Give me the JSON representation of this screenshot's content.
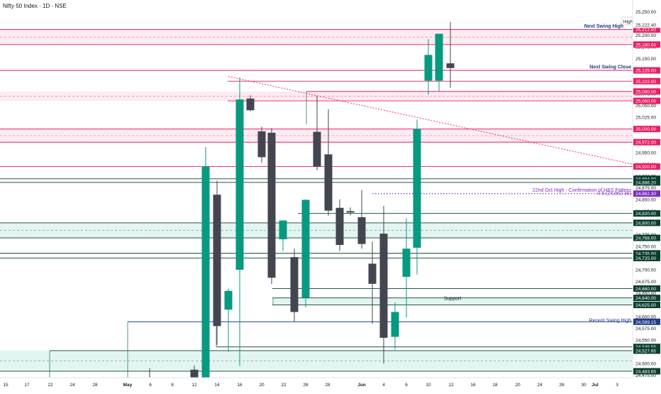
{
  "header": {
    "title": "Nifty 50 Index · 1D · NSE"
  },
  "chart_data": {
    "type": "candlestick",
    "ylim": [
      24470,
      25275
    ],
    "y_ticks": [
      "25,250.00",
      "25,225.00",
      "25,200.00",
      "25,175.00",
      "25,150.00",
      "25,125.00",
      "25,100.00",
      "25,075.00",
      "25,050.00",
      "25,025.00",
      "25,000.00",
      "24,975.00",
      "24,950.00",
      "24,925.00",
      "24,900.00",
      "24,875.00",
      "24,850.00",
      "24,825.00",
      "24,800.00",
      "24,775.00",
      "24,750.00",
      "24,725.00",
      "24,700.00",
      "24,675.00",
      "24,650.00",
      "24,625.00",
      "24,600.00",
      "24,575.00",
      "24,550.00",
      "24,525.00",
      "24,500.00",
      "24,475.00"
    ],
    "x_ticks": [
      "15",
      "17",
      "22",
      "24",
      "28",
      "May",
      "6",
      "8",
      "12",
      "14",
      "16",
      "20",
      "22",
      "26",
      "28",
      "Jun",
      "4",
      "6",
      "10",
      "12",
      "16",
      "18",
      "20",
      "24",
      "26",
      "30",
      "Jul",
      "3"
    ],
    "colors": {
      "up": "#089981",
      "down": "#434651",
      "resistance": "#e91e63",
      "support": "#0b3d2e",
      "zone_red": "#fce4ec",
      "zone_green": "#d9f2ec",
      "recent_high": "#1e3a8a",
      "annotation": "#7b2cbf"
    },
    "candles": [
      {
        "x": 0,
        "o": 24470,
        "h": 24490,
        "l": 24420,
        "c": 24460
      },
      {
        "x": 1,
        "o": 24487,
        "h": 24496,
        "l": 24430,
        "c": 24450
      },
      {
        "x": 2,
        "o": 24460,
        "h": 24962,
        "l": 24440,
        "c": 24920
      },
      {
        "x": 3,
        "o": 24860,
        "h": 24890,
        "l": 24540,
        "c": 24580
      },
      {
        "x": 4,
        "o": 24615,
        "h": 24660,
        "l": 24525,
        "c": 24655
      },
      {
        "x": 5,
        "o": 24700,
        "h": 25110,
        "l": 24495,
        "c": 25063
      },
      {
        "x": 6,
        "o": 25065,
        "h": 25072,
        "l": 25038,
        "c": 25040
      },
      {
        "x": 7,
        "o": 24995,
        "h": 25005,
        "l": 24928,
        "c": 24940
      },
      {
        "x": 8,
        "o": 24992,
        "h": 25002,
        "l": 24670,
        "c": 24683
      },
      {
        "x": 9,
        "o": 24765,
        "h": 24805,
        "l": 24740,
        "c": 24805
      },
      {
        "x": 10,
        "o": 24727,
        "h": 24745,
        "l": 24590,
        "c": 24610
      },
      {
        "x": 11,
        "o": 24640,
        "h": 24850,
        "l": 24620,
        "c": 24849
      },
      {
        "x": 12,
        "o": 24994,
        "h": 25070,
        "l": 24912,
        "c": 24920
      },
      {
        "x": 13,
        "o": 24946,
        "h": 25042,
        "l": 24815,
        "c": 24826
      },
      {
        "x": 14,
        "o": 24832,
        "h": 24850,
        "l": 24740,
        "c": 24753
      },
      {
        "x": 15,
        "o": 24825,
        "h": 24833,
        "l": 24816,
        "c": 24823
      },
      {
        "x": 16,
        "o": 24812,
        "h": 24870,
        "l": 24745,
        "c": 24755
      },
      {
        "x": 17,
        "o": 24713,
        "h": 24760,
        "l": 24585,
        "c": 24670
      },
      {
        "x": 18,
        "o": 24777,
        "h": 24836,
        "l": 24500,
        "c": 24555
      },
      {
        "x": 19,
        "o": 24557,
        "h": 24630,
        "l": 24530,
        "c": 24610
      },
      {
        "x": 20,
        "o": 24685,
        "h": 24810,
        "l": 24598,
        "c": 24745
      },
      {
        "x": 21,
        "o": 24747,
        "h": 25020,
        "l": 24690,
        "c": 25000
      },
      {
        "x": 22,
        "o": 25103,
        "h": 25192,
        "l": 25073,
        "c": 25158
      },
      {
        "x": 23,
        "o": 25103,
        "h": 25200,
        "l": 25080,
        "c": 25203
      },
      {
        "x": 24,
        "o": 25140,
        "h": 25228,
        "l": 25088,
        "c": 25130
      },
      {
        "x": 25,
        "o": 25160,
        "h": 25200,
        "l": 24815,
        "c": 24886
      }
    ],
    "levels": [
      {
        "price": 25212,
        "tag": "25,212.00",
        "color": "resistance"
      },
      {
        "price": 25180,
        "tag": "25,180.00",
        "color": "resistance"
      },
      {
        "price": 25125,
        "tag": "25,125.00",
        "color": "resistance"
      },
      {
        "price": 25102,
        "tag": "25,102.00",
        "color": "resistance"
      },
      {
        "price": 25080,
        "tag": "25,080.00",
        "color": "resistance"
      },
      {
        "price": 25060,
        "tag": "25,060.00",
        "color": "resistance"
      },
      {
        "price": 25000,
        "tag": "25,000.00",
        "color": "resistance"
      },
      {
        "price": 24972,
        "tag": "24,972.00",
        "color": "resistance"
      },
      {
        "price": 24920,
        "tag": "24,920.00",
        "color": "resistance"
      },
      {
        "price": 24894,
        "tag": "24,894.00",
        "color": "support"
      },
      {
        "price": 24886.2,
        "tag": "24,886.20",
        "color": "support"
      },
      {
        "price": 24820,
        "tag": "24,820.00",
        "color": "support"
      },
      {
        "price": 24800,
        "tag": "24,800.00",
        "color": "support"
      },
      {
        "price": 24768,
        "tag": "24,768.00",
        "color": "support"
      },
      {
        "price": 24735,
        "tag": "24,735.00",
        "color": "support"
      },
      {
        "price": 24725,
        "tag": "24,725.00",
        "color": "support"
      },
      {
        "price": 24660,
        "tag": "24,660.00",
        "color": "support"
      },
      {
        "price": 24640,
        "tag": "24,640.00",
        "color": "support"
      },
      {
        "price": 24625,
        "tag": "24,625.00",
        "color": "support"
      },
      {
        "price": 24589.15,
        "tag": "24,589.15",
        "color": "recent_high"
      },
      {
        "price": 24535.55,
        "tag": "24,535.55",
        "color": "support"
      },
      {
        "price": 24527.65,
        "tag": "24,527.65",
        "color": "support"
      },
      {
        "price": 24483.65,
        "tag": "24,483.65",
        "color": "support"
      }
    ],
    "special_tags": [
      {
        "price": 25222.4,
        "tag": "25,222.40"
      },
      {
        "price": 24862.3,
        "tag": "24,862.30",
        "color": "annotation"
      }
    ],
    "annotations": [
      {
        "text": "Next Swing High",
        "price": 25212
      },
      {
        "text": "Next Swing Close",
        "price": 25125
      },
      {
        "text": "22nd Oct High - Confirmation of H&S Pattern",
        "price": 24862.3
      },
      {
        "text": "0.5 (24,862.30)",
        "price": 24856
      },
      {
        "text": "Support",
        "price": 24632
      },
      {
        "text": "Recent Swing High",
        "price": 24585
      }
    ],
    "high_label": "High"
  }
}
